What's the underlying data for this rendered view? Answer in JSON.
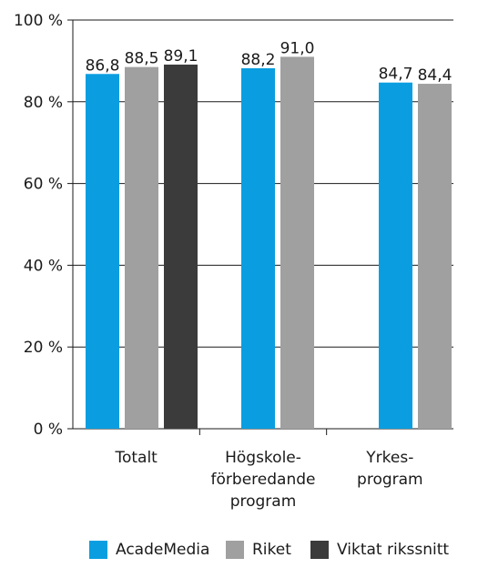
{
  "chart_data": {
    "type": "bar",
    "categories": [
      [
        "Totalt"
      ],
      [
        "Högskole-",
        "förberedande",
        "program"
      ],
      [
        "Yrkes-",
        "program"
      ]
    ],
    "series": [
      {
        "name": "AcadeMedia",
        "color": "#0a9ee0",
        "values": [
          86.8,
          88.2,
          84.7
        ],
        "labels": [
          "86,8",
          "88,2",
          "84,7"
        ]
      },
      {
        "name": "Riket",
        "color": "#a0a0a0",
        "values": [
          88.5,
          91.0,
          84.4
        ],
        "labels": [
          "88,5",
          "91,0",
          "84,4"
        ]
      },
      {
        "name": "Viktat rikssnitt",
        "color": "#3b3b3b",
        "values": [
          89.1,
          null,
          null
        ],
        "labels": [
          "89,1",
          "",
          ""
        ]
      }
    ],
    "yticks": [
      "0 %",
      "20 %",
      "40 %",
      "60 %",
      "80 %",
      "100 %"
    ],
    "ylim": [
      0,
      100
    ],
    "grid": true,
    "legend_position": "bottom"
  }
}
